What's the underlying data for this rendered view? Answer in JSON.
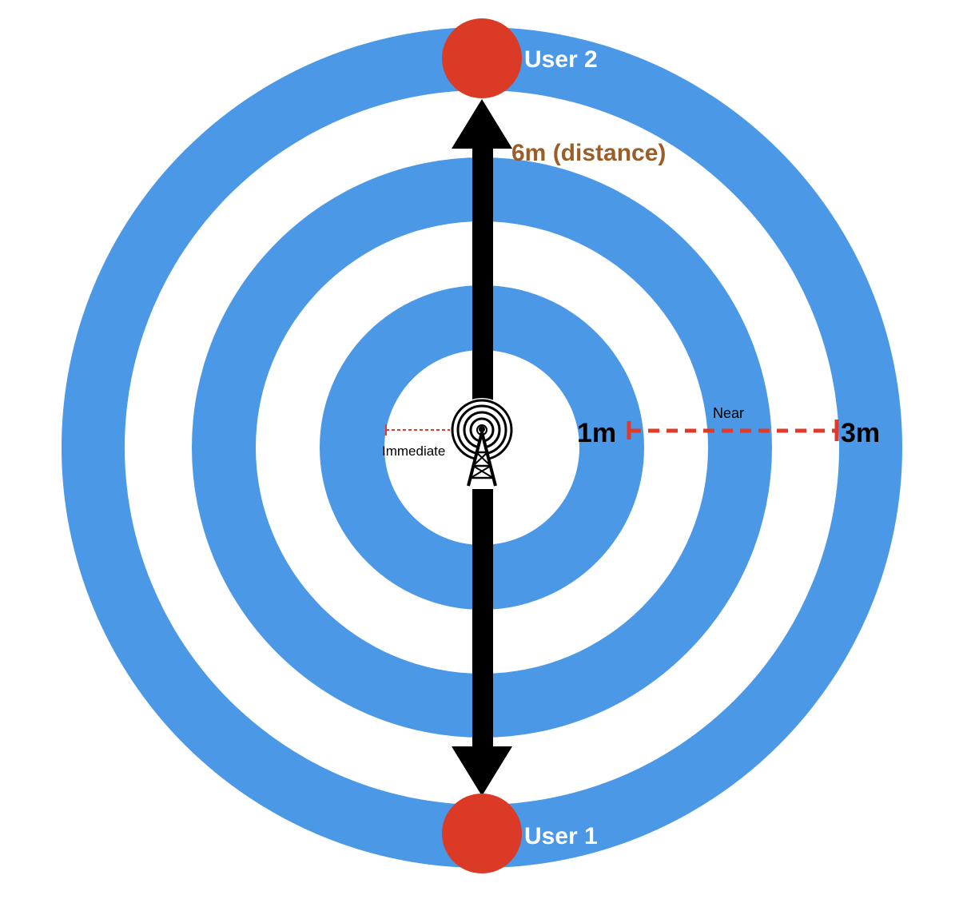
{
  "colors": {
    "ring": "#4a98e6",
    "gap": "#ffffff",
    "user": "#db3a26",
    "arrow": "#000000",
    "distance_label": "#9a5f28",
    "marker": "#e03a2a",
    "user_label": "#ffffff",
    "text": "#000000"
  },
  "icons": {
    "beacon": "radio-tower-icon"
  },
  "users": {
    "top": {
      "label": "User 2"
    },
    "bottom": {
      "label": "User 1"
    }
  },
  "labels": {
    "distance": "6m (distance)",
    "immediate": "Immediate",
    "near": "Near",
    "one_m": "1m",
    "three_m": "3m"
  }
}
